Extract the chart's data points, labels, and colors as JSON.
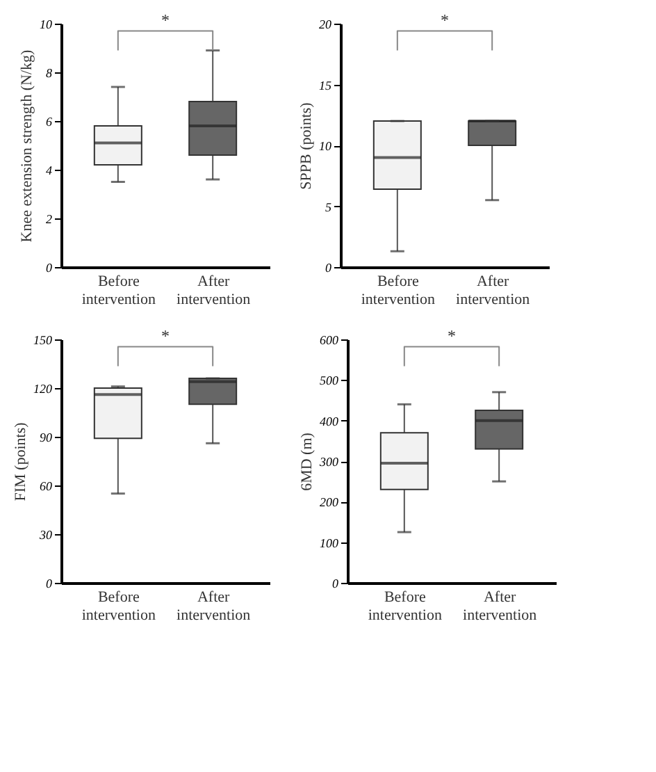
{
  "chart_data": [
    {
      "type": "box",
      "ylabel": "Knee extension strength (N/kg)",
      "categories": [
        "Before intervention",
        "After intervention"
      ],
      "colors": [
        "#f2f2f2",
        "#666666"
      ],
      "ylim": [
        0,
        10
      ],
      "yticks": [
        0,
        2,
        4,
        6,
        8,
        10
      ],
      "grid": false,
      "annotations": [
        "*"
      ],
      "boxes": [
        {
          "low": 3.5,
          "q1": 4.2,
          "median": 5.1,
          "q3": 5.8,
          "high": 7.4
        },
        {
          "low": 3.6,
          "q1": 4.6,
          "median": 5.8,
          "q3": 6.8,
          "high": 8.9
        }
      ]
    },
    {
      "type": "box",
      "ylabel": "SPPB (points)",
      "categories": [
        "Before intervention",
        "After intervention"
      ],
      "colors": [
        "#f2f2f2",
        "#666666"
      ],
      "ylim": [
        0,
        20
      ],
      "yticks": [
        0,
        5,
        10,
        15,
        20
      ],
      "grid": false,
      "annotations": [
        "*"
      ],
      "boxes": [
        {
          "low": 1.3,
          "q1": 6.4,
          "median": 9,
          "q3": 12,
          "high": 12
        },
        {
          "low": 5.5,
          "q1": 10,
          "median": 12,
          "q3": 12,
          "high": 12
        }
      ]
    },
    {
      "type": "box",
      "ylabel": "FIM (points)",
      "categories": [
        "Before intervention",
        "After intervention"
      ],
      "colors": [
        "#f2f2f2",
        "#666666"
      ],
      "ylim": [
        0,
        150
      ],
      "yticks": [
        0,
        30,
        60,
        90,
        120,
        150
      ],
      "grid": false,
      "annotations": [
        "*"
      ],
      "boxes": [
        {
          "low": 55,
          "q1": 89,
          "median": 116,
          "q3": 120,
          "high": 121
        },
        {
          "low": 86,
          "q1": 110,
          "median": 124,
          "q3": 126,
          "high": 126
        }
      ]
    },
    {
      "type": "box",
      "ylabel": "6MD (m)",
      "categories": [
        "Before intervention",
        "After intervention"
      ],
      "colors": [
        "#f2f2f2",
        "#666666"
      ],
      "ylim": [
        0,
        600
      ],
      "yticks": [
        0,
        100,
        200,
        300,
        400,
        500,
        600
      ],
      "grid": false,
      "annotations": [
        "*"
      ],
      "boxes": [
        {
          "low": 125,
          "q1": 230,
          "median": 295,
          "q3": 370,
          "high": 440
        },
        {
          "low": 250,
          "q1": 330,
          "median": 400,
          "q3": 425,
          "high": 470
        }
      ]
    }
  ]
}
